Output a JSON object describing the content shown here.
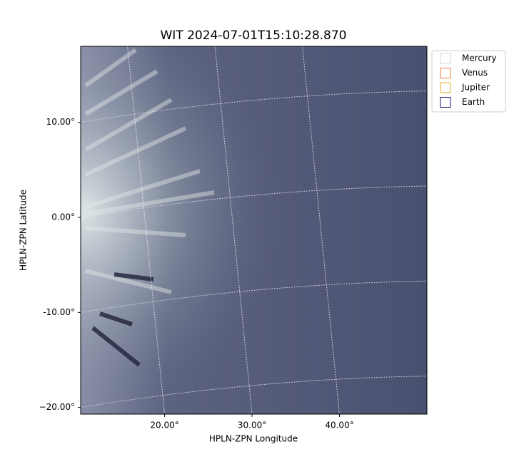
{
  "chart_data": {
    "type": "image",
    "title": "WIT 2024-07-01T15:10:28.870",
    "xlabel": "HPLN-ZPN Longitude",
    "ylabel": "HPLN-ZPN Latitude",
    "xlim": [
      10.4,
      50
    ],
    "ylim": [
      -20.7,
      18
    ],
    "xticks": [
      {
        "value": 20,
        "label": "20.00°"
      },
      {
        "value": 30,
        "label": "30.00°"
      },
      {
        "value": 40,
        "label": "40.00°"
      }
    ],
    "yticks": [
      {
        "value": 10,
        "label": "10.00°"
      },
      {
        "value": 0,
        "label": "0.00°"
      },
      {
        "value": -10,
        "label": "-10.00°"
      },
      {
        "value": -20,
        "label": "−20.00°"
      }
    ],
    "grid": true,
    "legend": {
      "position": "upper right outside",
      "entries": [
        {
          "name": "Mercury",
          "color": "#d3d3d3"
        },
        {
          "name": "Venus",
          "color": "#e07b39"
        },
        {
          "name": "Jupiter",
          "color": "#e0b020"
        },
        {
          "name": "Earth",
          "color": "#1a1a7a"
        }
      ]
    }
  }
}
